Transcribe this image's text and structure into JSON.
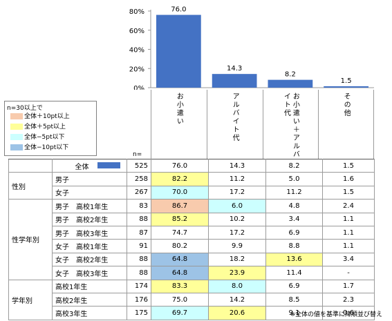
{
  "colors": {
    "bar": "#4472C4",
    "plus10": "#F8CBAD",
    "plus5": "#FFFF99",
    "minus5": "#CCFFFF",
    "minus10": "#9DC3E6"
  },
  "chart_data": {
    "type": "bar",
    "categories": [
      "お小遣い",
      "アルバイト代",
      "お小遣い＋アルバイト代",
      "その他"
    ],
    "values": [
      76.0,
      14.3,
      8.2,
      1.5
    ],
    "value_labels": [
      "76.0",
      "14.3",
      "8.2",
      "1.5"
    ],
    "yticks": [
      "80%",
      "60%",
      "40%",
      "20%",
      "0%"
    ],
    "ylim": [
      0,
      80
    ],
    "grid": false
  },
  "legend": {
    "title": "n=30以上で",
    "items": [
      {
        "label": "全体＋10pt以上",
        "color": "#F8CBAD"
      },
      {
        "label": "全体＋5pt以上",
        "color": "#FFFF99"
      },
      {
        "label": "全体−5pt以下",
        "color": "#CCFFFF"
      },
      {
        "label": "全体−10pt以下",
        "color": "#9DC3E6"
      }
    ]
  },
  "table": {
    "n_header": "n=",
    "rows": [
      {
        "group": "",
        "label": "全体",
        "n": "525",
        "v": [
          "76.0",
          "14.3",
          "8.2",
          "1.5"
        ],
        "hl": [
          "",
          "",
          "",
          ""
        ],
        "total": true
      },
      {
        "group": "性別",
        "span": 2,
        "label": "男子",
        "n": "258",
        "v": [
          "82.2",
          "11.2",
          "5.0",
          "1.6"
        ],
        "hl": [
          "plus5",
          "",
          "",
          ""
        ]
      },
      {
        "label": "女子",
        "n": "267",
        "v": [
          "70.0",
          "17.2",
          "11.2",
          "1.5"
        ],
        "hl": [
          "minus5",
          "",
          "",
          ""
        ]
      },
      {
        "group": "性学年別",
        "span": 6,
        "label": "男子　高校1年生",
        "n": "83",
        "v": [
          "86.7",
          "6.0",
          "4.8",
          "2.4"
        ],
        "hl": [
          "plus10",
          "minus5",
          "",
          ""
        ]
      },
      {
        "label": "男子　高校2年生",
        "n": "88",
        "v": [
          "85.2",
          "10.2",
          "3.4",
          "1.1"
        ],
        "hl": [
          "plus5",
          "",
          "",
          ""
        ]
      },
      {
        "label": "男子　高校3年生",
        "n": "87",
        "v": [
          "74.7",
          "17.2",
          "6.9",
          "1.1"
        ],
        "hl": [
          "",
          "",
          "",
          ""
        ]
      },
      {
        "label": "女子　高校1年生",
        "n": "91",
        "v": [
          "80.2",
          "9.9",
          "8.8",
          "1.1"
        ],
        "hl": [
          "",
          "",
          "",
          ""
        ]
      },
      {
        "label": "女子　高校2年生",
        "n": "88",
        "v": [
          "64.8",
          "18.2",
          "13.6",
          "3.4"
        ],
        "hl": [
          "minus10",
          "",
          "plus5",
          ""
        ]
      },
      {
        "label": "女子　高校3年生",
        "n": "88",
        "v": [
          "64.8",
          "23.9",
          "11.4",
          "-"
        ],
        "hl": [
          "minus10",
          "plus5",
          "",
          ""
        ]
      },
      {
        "group": "学年別",
        "span": 3,
        "label": "高校1年生",
        "n": "174",
        "v": [
          "83.3",
          "8.0",
          "6.9",
          "1.7"
        ],
        "hl": [
          "plus5",
          "minus5",
          "",
          ""
        ]
      },
      {
        "label": "高校2年生",
        "n": "176",
        "v": [
          "75.0",
          "14.2",
          "8.5",
          "2.3"
        ],
        "hl": [
          "",
          "",
          "",
          ""
        ]
      },
      {
        "label": "高校3年生",
        "n": "175",
        "v": [
          "69.7",
          "20.6",
          "9.1",
          "0.6"
        ],
        "hl": [
          "minus5",
          "plus5",
          "",
          ""
        ]
      }
    ]
  },
  "footnote": "※全体の値を基準に降順並び替え"
}
